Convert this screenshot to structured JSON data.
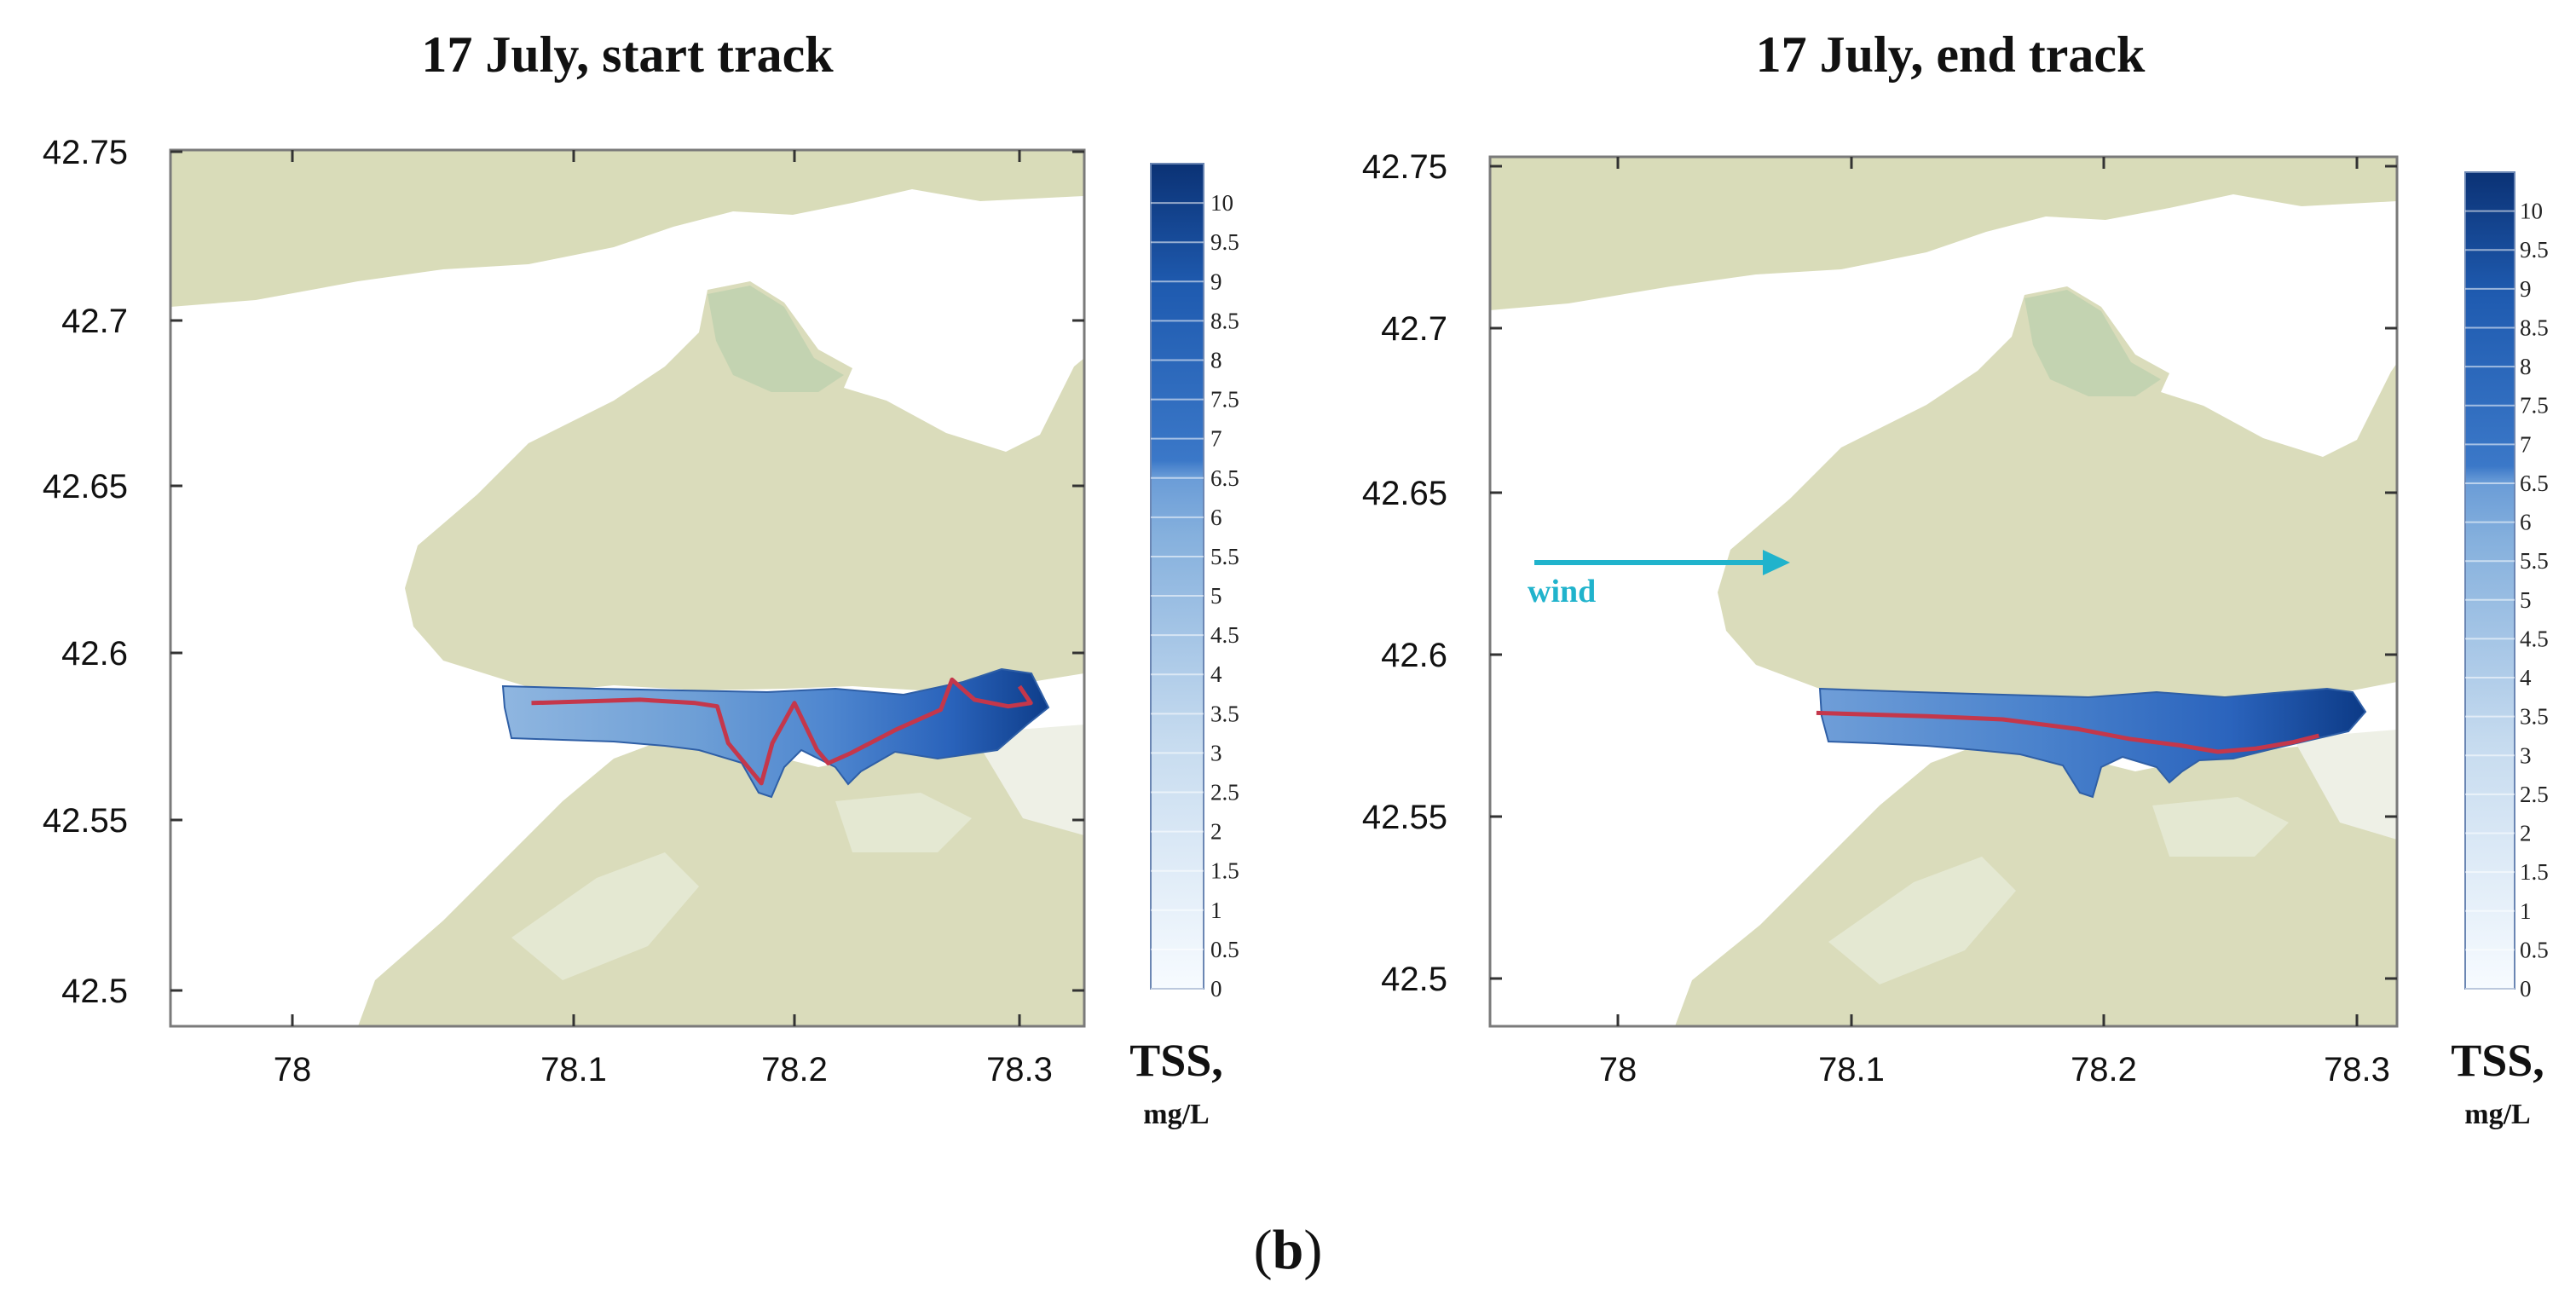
{
  "caption": "(b)",
  "caption_b": "b",
  "colors": {
    "land": "#d9dcb9",
    "land_light": "#e4e8d2",
    "land_green": "#c3d3b1",
    "water": "#ffffff",
    "track": "#c4374b",
    "wind": "#20b3cc",
    "tss_low": "#f7fbff",
    "tss_high": "#08306b"
  },
  "panels": [
    {
      "title": "17 July, start track",
      "wind_label": "",
      "colorbar": {
        "label": "TSS,",
        "unit": "mg/L"
      }
    },
    {
      "title": "17 July, end track",
      "wind_label": "wind",
      "colorbar": {
        "label": "TSS,",
        "unit": "mg/L"
      }
    }
  ],
  "axes": {
    "lon_ticks": [
      "78",
      "78.1",
      "78.2",
      "78.3"
    ],
    "lat_ticks": [
      "42.75",
      "42.7",
      "42.65",
      "42.6",
      "42.55",
      "42.5"
    ],
    "lon_range": [
      77.975,
      78.315
    ],
    "lat_range": [
      42.485,
      42.76
    ]
  },
  "colorbar_ticks": [
    "10",
    "9.5",
    "9",
    "8.5",
    "8",
    "7.5",
    "7",
    "6.5",
    "6",
    "5.5",
    "5",
    "4.5",
    "4",
    "3.5",
    "3",
    "2.5",
    "2",
    "1.5",
    "1",
    "0.5",
    "0"
  ],
  "colorbar_range": [
    0,
    10.5
  ],
  "tracks": [
    {
      "name": "",
      "points": [
        [
          78.085,
          42.585
        ],
        [
          78.13,
          42.586
        ],
        [
          78.155,
          42.585
        ],
        [
          78.165,
          42.584
        ],
        [
          78.17,
          42.573
        ],
        [
          78.18,
          42.565
        ],
        [
          78.185,
          42.561
        ],
        [
          78.19,
          42.573
        ],
        [
          78.2,
          42.585
        ],
        [
          78.205,
          42.578
        ],
        [
          78.21,
          42.571
        ],
        [
          78.215,
          42.567
        ],
        [
          78.225,
          42.57
        ],
        [
          78.245,
          42.577
        ],
        [
          78.265,
          42.583
        ],
        [
          78.27,
          42.592
        ],
        [
          78.28,
          42.586
        ],
        [
          78.295,
          42.584
        ],
        [
          78.305,
          42.585
        ],
        [
          78.3,
          42.59
        ]
      ]
    },
    {
      "name": "",
      "points": [
        [
          78.085,
          42.582
        ],
        [
          78.13,
          42.581
        ],
        [
          78.16,
          42.58
        ],
        [
          78.19,
          42.577
        ],
        [
          78.21,
          42.574
        ],
        [
          78.23,
          42.572
        ],
        [
          78.245,
          42.57
        ],
        [
          78.26,
          42.571
        ],
        [
          78.275,
          42.573
        ],
        [
          78.285,
          42.575
        ]
      ]
    }
  ]
}
